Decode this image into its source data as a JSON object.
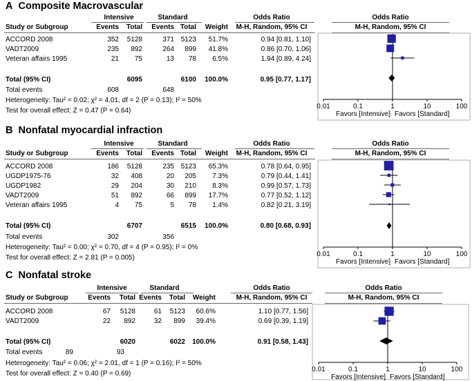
{
  "chart_data": [
    {
      "type": "forest",
      "letter": "A",
      "title": "Composite Macrovascular",
      "headers": {
        "group1": "Intensive",
        "group2": "Standard",
        "study": "Study or Subgroup",
        "events": "Events",
        "total": "Total",
        "weight": "Weight",
        "or_title": "Odds Ratio",
        "or_method": "M-H, Random, 95% CI"
      },
      "studies": [
        {
          "name": "ACCORD 2008",
          "e1": "352",
          "n1": "5128",
          "e2": "371",
          "n2": "5123",
          "weight": "51.7%",
          "ci": "0.94 [0.81, 1.10]",
          "or": 0.94,
          "lo": 0.81,
          "hi": 1.1,
          "w": 51.7
        },
        {
          "name": "VADT2009",
          "e1": "235",
          "n1": "892",
          "e2": "264",
          "n2": "899",
          "weight": "41.8%",
          "ci": "0.86 [0.70, 1.06]",
          "or": 0.86,
          "lo": 0.7,
          "hi": 1.06,
          "w": 41.8
        },
        {
          "name": "Veteran affairs 1995",
          "e1": "21",
          "n1": "75",
          "e2": "13",
          "n2": "78",
          "weight": "6.5%",
          "ci": "1.94 [0.89, 4.24]",
          "or": 1.94,
          "lo": 0.89,
          "hi": 4.24,
          "w": 6.5
        }
      ],
      "total": {
        "label": "Total (95% CI)",
        "n1": "6095",
        "n2": "6100",
        "weight": "100.0%",
        "ci": "0.95 [0.77, 1.17]",
        "or": 0.95,
        "lo": 0.77,
        "hi": 1.17
      },
      "total_events": {
        "label": "Total events",
        "e1": "608",
        "e2": "648"
      },
      "heterogeneity": "Heterogeneity: Tau² = 0.02; χ² = 4.01, df = 2 (P = 0.13); I² = 50%",
      "overall": "Test for overall effect: Z = 0.47 (P = 0.64)",
      "x_axis": {
        "scale": "log",
        "range": [
          0.01,
          100
        ],
        "ticks": [
          0.01,
          0.1,
          1,
          10,
          100
        ],
        "tick_labels": [
          "0.01",
          "0.1",
          "1",
          "10",
          "100"
        ]
      },
      "favors_left": "Favors [Intensive]",
      "favors_right": "Favors [Standard]"
    },
    {
      "type": "forest",
      "letter": "B",
      "title": "Nonfatal myocardial infraction",
      "headers": {
        "group1": "Intensive",
        "group2": "Standard",
        "study": "Study or Subgroup",
        "events": "Events",
        "total": "Total",
        "weight": "Weight",
        "or_title": "Odds Ratio",
        "or_method": "M-H, Random, 95% CI"
      },
      "studies": [
        {
          "name": "ACCORD 2008",
          "e1": "186",
          "n1": "5128",
          "e2": "235",
          "n2": "5123",
          "weight": "65.3%",
          "ci": "0.78 [0.64, 0.95]",
          "or": 0.78,
          "lo": 0.64,
          "hi": 0.95,
          "w": 65.3
        },
        {
          "name": "UGDP1975-76",
          "e1": "32",
          "n1": "408",
          "e2": "20",
          "n2": "205",
          "weight": "7.3%",
          "ci": "0.79 [0.44, 1.41]",
          "or": 0.79,
          "lo": 0.44,
          "hi": 1.41,
          "w": 7.3
        },
        {
          "name": "UGDP1982",
          "e1": "29",
          "n1": "204",
          "e2": "30",
          "n2": "210",
          "weight": "8.3%",
          "ci": "0.99 [0.57, 1.73]",
          "or": 0.99,
          "lo": 0.57,
          "hi": 1.73,
          "w": 8.3
        },
        {
          "name": "VADT2009",
          "e1": "51",
          "n1": "892",
          "e2": "66",
          "n2": "899",
          "weight": "17.7%",
          "ci": "0.77 [0.52, 1.12]",
          "or": 0.77,
          "lo": 0.52,
          "hi": 1.12,
          "w": 17.7
        },
        {
          "name": "Veteran affairs 1995",
          "e1": "4",
          "n1": "75",
          "e2": "5",
          "n2": "78",
          "weight": "1.4%",
          "ci": "0.82 [0.21, 3.19]",
          "or": 0.82,
          "lo": 0.21,
          "hi": 3.19,
          "w": 1.4
        }
      ],
      "total": {
        "label": "Total (95% CI)",
        "n1": "6707",
        "n2": "6515",
        "weight": "100.0%",
        "ci": "0.80 [0.68, 0.93]",
        "or": 0.8,
        "lo": 0.68,
        "hi": 0.93
      },
      "total_events": {
        "label": "Total events",
        "e1": "302",
        "e2": "356"
      },
      "heterogeneity": "Heterogeneity: Tau² = 0.00; χ² = 0.70, df = 4 (P = 0.95); I² = 0%",
      "overall": "Test for overall effect: Z = 2.81 (P = 0.005)",
      "x_axis": {
        "scale": "log",
        "range": [
          0.01,
          100
        ],
        "ticks": [
          0.01,
          0.1,
          1,
          10,
          100
        ],
        "tick_labels": [
          "0.01",
          "0.1",
          "1",
          "10",
          "100"
        ]
      },
      "favors_left": "Favors [Intensive]",
      "favors_right": "Favors [Standard]"
    },
    {
      "type": "forest",
      "letter": "C",
      "title": "Nonfatal stroke",
      "headers": {
        "group1": "Intensive",
        "group2": "Standard",
        "study": "Study or Subgroup",
        "events": "Events",
        "total": "Total",
        "weight": "Weight",
        "or_title": "Odds Ratio",
        "or_method": "M-H, Random, 95% CI"
      },
      "studies": [
        {
          "name": "ACCORD 2008",
          "e1": "67",
          "n1": "5128",
          "e2": "61",
          "n2": "5123",
          "weight": "60.6%",
          "ci": "1.10 [0.77, 1.56]",
          "or": 1.1,
          "lo": 0.77,
          "hi": 1.56,
          "w": 60.6
        },
        {
          "name": "VADT2009",
          "e1": "22",
          "n1": "892",
          "e2": "32",
          "n2": "899",
          "weight": "39.4%",
          "ci": "0.69 [0.39, 1.19]",
          "or": 0.69,
          "lo": 0.39,
          "hi": 1.19,
          "w": 39.4
        }
      ],
      "total": {
        "label": "Total (95% CI)",
        "n1": "6020",
        "n2": "6022",
        "weight": "100.0%",
        "ci": "0.91 [0.58, 1.43]",
        "or": 0.91,
        "lo": 0.58,
        "hi": 1.43
      },
      "total_events": {
        "label": "Total events",
        "e1": "89",
        "e2": "93"
      },
      "heterogeneity": "Heterogeneity: Tau² = 0.06; χ² = 2.01, df = 1 (P = 0.16); I² = 50%",
      "overall": "Test for overall effect: Z = 0.40 (P = 0.69)",
      "x_axis": {
        "scale": "log",
        "range": [
          0.01,
          100
        ],
        "ticks": [
          0.01,
          0.1,
          1,
          10,
          100
        ],
        "tick_labels": [
          "0.01",
          "0.1",
          "1",
          "10",
          "100"
        ]
      },
      "favors_left": "Favors [Intensive]",
      "favors_right": "Favors [Standard]"
    }
  ],
  "colors": {
    "study_square": "#1f1fa6",
    "diamond": "#000000",
    "rule": "#666666"
  }
}
